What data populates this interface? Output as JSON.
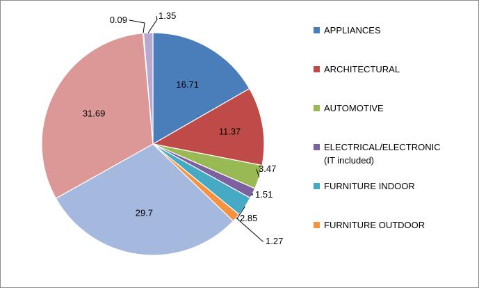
{
  "chart_data": {
    "type": "pie",
    "title": "",
    "legend_position": "right",
    "slices": [
      {
        "name": "APPLIANCES",
        "value": 16.71,
        "label": "16.71",
        "color": "#4a7ebb"
      },
      {
        "name": "ARCHITECTURAL",
        "value": 11.37,
        "label": "11.37",
        "color": "#be4b48"
      },
      {
        "name": "AUTOMOTIVE",
        "value": 3.47,
        "label": "3.47",
        "color": "#98b954"
      },
      {
        "name": "ELECTRICAL/ELECTRONIC (IT included)",
        "legend_lines": [
          "ELECTRICAL/ELECTRONIC",
          "(IT included)"
        ],
        "value": 1.51,
        "label": "1.51",
        "color": "#7d60a0"
      },
      {
        "name": "FURNITURE INDOOR",
        "value": 2.85,
        "label": "2.85",
        "color": "#46aac5"
      },
      {
        "name": "FURNITURE OUTDOOR",
        "value": 1.27,
        "label": "1.27",
        "color": "#f69240"
      },
      {
        "name": "",
        "value": 29.7,
        "label": "29.7",
        "color": "#a5b9de",
        "in_legend": false
      },
      {
        "name": "",
        "value": 31.69,
        "label": "31.69",
        "color": "#dc9896",
        "in_legend": false
      },
      {
        "name": "",
        "value": 0.09,
        "label": "0.09",
        "color": "#c6d6a8",
        "in_legend": false
      },
      {
        "name": "",
        "value": 1.35,
        "label": "1.35",
        "color": "#b8a8cf",
        "in_legend": false
      }
    ]
  }
}
